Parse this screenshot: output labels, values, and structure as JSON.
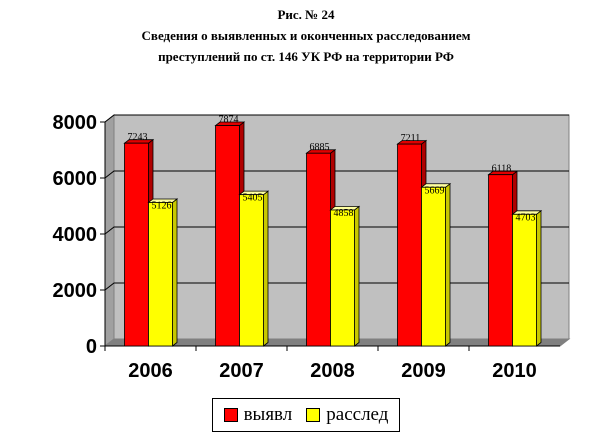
{
  "figure": {
    "caption": "Рис. № 24",
    "title_line1": "Сведения о выявленных и оконченных расследованием",
    "title_line2": "преступлений по ст. 146 УК РФ на территории РФ"
  },
  "legend": {
    "placement": "bottom-center",
    "items": [
      {
        "label": "выявл",
        "color": "#ff0000"
      },
      {
        "label": "расслед",
        "color": "#ffff00"
      }
    ]
  },
  "chart_data": {
    "type": "bar",
    "title": "Сведения о выявленных и оконченных расследованием преступлений по ст. 146 УК РФ на территории РФ",
    "xlabel": "",
    "ylabel": "",
    "categories": [
      "2006",
      "2007",
      "2008",
      "2009",
      "2010"
    ],
    "series": [
      {
        "name": "выявл",
        "color": "#ff0000",
        "values": [
          7243,
          7874,
          6885,
          7211,
          6118
        ]
      },
      {
        "name": "расслед",
        "color": "#ffff00",
        "values": [
          5126,
          5405,
          4858,
          5669,
          4703
        ]
      }
    ],
    "ylim": [
      0,
      8000
    ],
    "yticks": [
      "0",
      "2000",
      "4000",
      "6000",
      "8000"
    ],
    "grid": true,
    "plot_background": "#c0c0c0",
    "style": "3d-bars"
  }
}
